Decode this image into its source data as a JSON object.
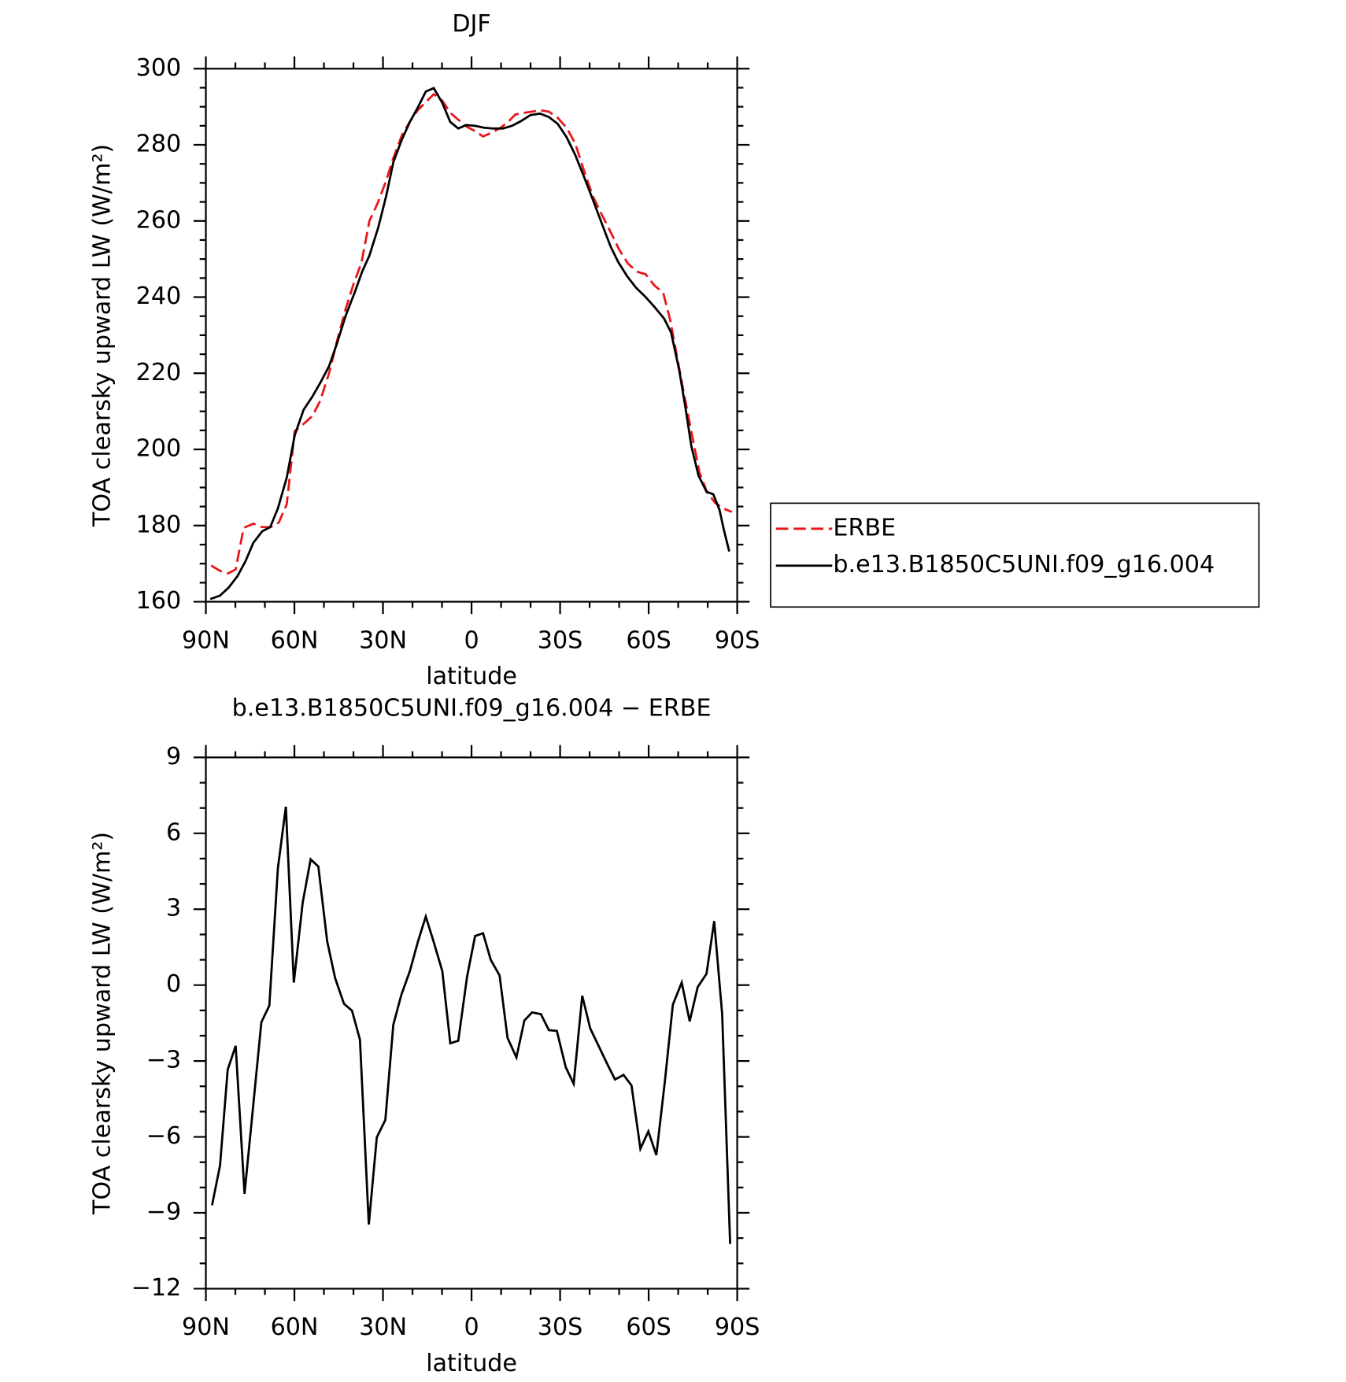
{
  "chart_data": [
    {
      "type": "line",
      "title": "DJF",
      "xlabel": "latitude",
      "ylabel": "TOA clearsky upward LW (W/m²)",
      "xlim": [
        90,
        -90
      ],
      "xticks": [
        {
          "value": 90,
          "label": "90N"
        },
        {
          "value": 60,
          "label": "60N"
        },
        {
          "value": 30,
          "label": "30N"
        },
        0,
        {
          "value": -30,
          "label": "30S"
        },
        {
          "value": -60,
          "label": "60S"
        },
        {
          "value": -90,
          "label": "90S"
        }
      ],
      "ylim": [
        160,
        300
      ],
      "yticks": [
        160,
        180,
        200,
        220,
        240,
        260,
        280,
        300
      ],
      "legend": "right",
      "series": [
        {
          "name": "ERBE",
          "color": "#e8161b",
          "linestyle": "dashed",
          "x": [
            88.2,
            85.2,
            82.6,
            79.9,
            77.2,
            73.9,
            70.9,
            68.0,
            65.3,
            62.6,
            59.9,
            56.6,
            53.9,
            51.3,
            48.3,
            45.3,
            42.6,
            39.9,
            37.3,
            34.6,
            31.9,
            29.2,
            26.5,
            23.6,
            20.9,
            18.2,
            15.5,
            12.8,
            9.9,
            7.2,
            4.5,
            1.5,
            -1.2,
            -3.9,
            -6.5,
            -9.5,
            -12.2,
            -14.9,
            -17.6,
            -20.5,
            -23.2,
            -26.2,
            -29.2,
            -32.2,
            -35.1,
            -38.1,
            -41.1,
            -44.1,
            -47.1,
            -50.0,
            -53.0,
            -56.0,
            -59.0,
            -62.0,
            -64.9,
            -67.3,
            -69.7,
            -72.1,
            -74.8,
            -77.2,
            -79.8,
            -82.5,
            -85.2,
            -88.2
          ],
          "values": [
            169.5,
            168.1,
            167.4,
            168.5,
            179.4,
            180.5,
            179.6,
            179.6,
            180.8,
            185.6,
            204.8,
            206.9,
            208.8,
            212.7,
            219.9,
            229.3,
            237.0,
            243.6,
            249.0,
            260.0,
            264.5,
            270.0,
            276.5,
            282.5,
            286.1,
            289.1,
            291.2,
            293.3,
            291.6,
            288.4,
            286.6,
            284.7,
            283.6,
            282.2,
            283.1,
            284.3,
            285.9,
            288.0,
            288.4,
            288.7,
            289.1,
            288.7,
            287.1,
            284.5,
            280.4,
            273.2,
            266.5,
            261.7,
            257.1,
            252.5,
            248.8,
            246.7,
            246.0,
            243.0,
            241.2,
            234.0,
            224.0,
            214.1,
            203.3,
            194.0,
            188.7,
            186.0,
            184.5,
            183.6
          ]
        },
        {
          "name": "b.e13.B1850C5UNI.f09_g16.004",
          "color": "#000000",
          "linestyle": "solid",
          "x": [
            88.5,
            85.2,
            82.3,
            79.3,
            76.6,
            73.9,
            70.9,
            68.2,
            65.6,
            62.6,
            59.9,
            56.9,
            53.9,
            51.3,
            48.3,
            45.6,
            42.6,
            39.6,
            37.0,
            34.6,
            31.6,
            28.9,
            26.5,
            23.6,
            20.9,
            18.2,
            15.5,
            12.8,
            9.9,
            7.2,
            4.5,
            1.8,
            -1.2,
            -4.2,
            -7.1,
            -10.7,
            -13.7,
            -16.7,
            -19.9,
            -23.2,
            -26.2,
            -29.2,
            -32.2,
            -35.1,
            -38.1,
            -41.1,
            -44.1,
            -47.1,
            -49.7,
            -52.7,
            -55.7,
            -59.0,
            -62.0,
            -65.2,
            -67.6,
            -70.3,
            -72.4,
            -74.5,
            -76.9,
            -79.6,
            -81.9,
            -84.0,
            -85.5,
            -87.3
          ],
          "values": [
            160.7,
            161.6,
            163.7,
            166.7,
            170.6,
            175.5,
            178.5,
            179.6,
            184.5,
            192.6,
            203.7,
            210.4,
            213.9,
            217.4,
            221.8,
            227.8,
            235.2,
            241.2,
            246.8,
            250.9,
            258.3,
            266.6,
            275.4,
            281.4,
            286.0,
            289.8,
            294.0,
            294.9,
            291.0,
            286.0,
            284.3,
            285.2,
            285.0,
            284.5,
            284.3,
            284.3,
            285.0,
            286.2,
            287.8,
            288.2,
            287.3,
            285.5,
            282.0,
            277.4,
            271.6,
            265.6,
            259.4,
            253.3,
            249.2,
            245.5,
            242.5,
            240.0,
            237.4,
            234.4,
            230.7,
            221.0,
            211.3,
            200.7,
            193.1,
            188.9,
            188.2,
            184.1,
            178.8,
            173.2
          ]
        }
      ]
    },
    {
      "type": "line",
      "title": "b.e13.B1850C5UNI.f09_g16.004 − ERBE",
      "xlabel": "latitude",
      "ylabel": "TOA clearsky upward LW (W/m²)",
      "xlim": [
        90,
        -90
      ],
      "xticks": [
        {
          "value": 90,
          "label": "90N"
        },
        {
          "value": 60,
          "label": "60N"
        },
        {
          "value": 30,
          "label": "30N"
        },
        0,
        {
          "value": -30,
          "label": "30S"
        },
        {
          "value": -60,
          "label": "60S"
        },
        {
          "value": -90,
          "label": "90S"
        }
      ],
      "ylim": [
        -12,
        9
      ],
      "yticks": [
        {
          "value": -12,
          "label": "−12"
        },
        {
          "value": -9,
          "label": "−9"
        },
        {
          "value": -6,
          "label": "−6"
        },
        {
          "value": -3,
          "label": "−3"
        },
        0,
        3,
        6,
        9
      ],
      "series": [
        {
          "color": "#000000",
          "linestyle": "solid",
          "x": [
            87.9,
            85.2,
            82.6,
            79.9,
            76.9,
            74.2,
            71.2,
            68.5,
            65.6,
            62.9,
            60.2,
            57.2,
            54.5,
            51.9,
            48.9,
            46.2,
            43.2,
            40.5,
            37.8,
            34.8,
            32.1,
            29.2,
            26.5,
            23.8,
            20.9,
            18.2,
            15.5,
            12.8,
            9.9,
            7.2,
            4.5,
            1.5,
            -1.2,
            -3.9,
            -6.5,
            -9.5,
            -12.2,
            -15.2,
            -17.9,
            -20.5,
            -23.5,
            -26.2,
            -28.9,
            -31.9,
            -34.6,
            -37.5,
            -40.2,
            -42.9,
            -45.9,
            -48.6,
            -51.5,
            -54.2,
            -57.2,
            -59.9,
            -62.6,
            -65.5,
            -68.2,
            -71.2,
            -73.9,
            -76.6,
            -79.6,
            -82.2,
            -84.9,
            -87.6
          ],
          "values": [
            -8.7,
            -7.13,
            -3.34,
            -2.4,
            -8.25,
            -5.05,
            -1.47,
            -0.81,
            4.62,
            7.05,
            0.1,
            3.26,
            4.97,
            4.69,
            1.73,
            0.27,
            -0.74,
            -1.01,
            -2.16,
            -9.46,
            -6.02,
            -5.33,
            -1.57,
            -0.39,
            0.55,
            1.7,
            2.71,
            1.7,
            0.55,
            -2.3,
            -2.2,
            0.34,
            1.94,
            2.05,
            1.0,
            0.38,
            -2.09,
            -2.86,
            -1.4,
            -1.08,
            -1.15,
            -1.78,
            -1.81,
            -3.24,
            -3.9,
            -0.42,
            -1.71,
            -2.37,
            -3.1,
            -3.73,
            -3.55,
            -3.97,
            -6.47,
            -5.78,
            -6.72,
            -3.8,
            -0.77,
            0.1,
            -1.43,
            -0.08,
            0.45,
            2.53,
            -1.15,
            -10.23
          ]
        }
      ]
    }
  ]
}
